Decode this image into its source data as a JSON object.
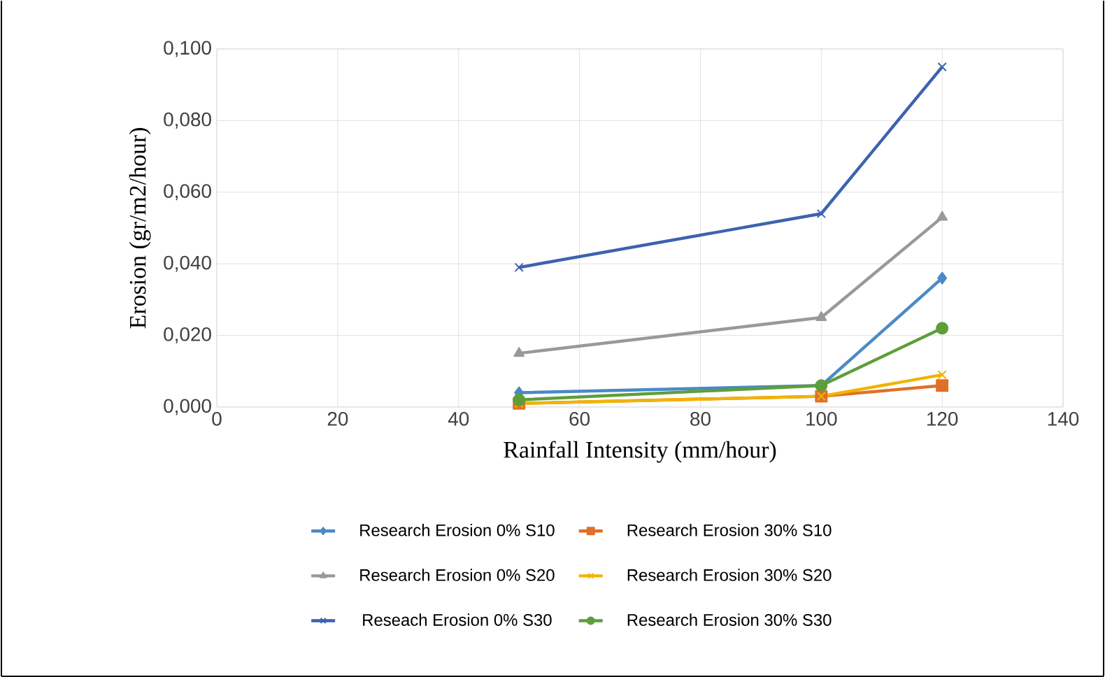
{
  "chart_data": {
    "type": "line",
    "xlabel": "Rainfall Intensity (mm/hour)",
    "ylabel": "Erosion (gr/m2/hour)",
    "x": [
      50,
      100,
      120
    ],
    "series": [
      {
        "name": "Research Erosion 0% S10",
        "color": "#4a8ac4",
        "marker": "diamond",
        "values": [
          0.004,
          0.006,
          0.036
        ]
      },
      {
        "name": "Research Erosion 30% S10",
        "color": "#e07028",
        "marker": "square",
        "values": [
          0.001,
          0.003,
          0.006
        ]
      },
      {
        "name": "Research Erosion 0% S20",
        "color": "#999999",
        "marker": "triangle",
        "values": [
          0.015,
          0.025,
          0.053
        ]
      },
      {
        "name": "Research Erosion 30% S20",
        "color": "#f0b400",
        "marker": "cross",
        "values": [
          0.001,
          0.003,
          0.009
        ]
      },
      {
        "name": "Reseach Erosion 0% S30",
        "color": "#3d62b0",
        "marker": "cross",
        "values": [
          0.039,
          0.054,
          0.095
        ]
      },
      {
        "name": "Research Erosion 30% S30",
        "color": "#5e9e3a",
        "marker": "circle",
        "values": [
          0.002,
          0.006,
          0.022
        ]
      }
    ],
    "xlim": [
      0,
      140
    ],
    "xticks": [
      0,
      20,
      40,
      60,
      80,
      100,
      120,
      140
    ],
    "ylim": [
      0,
      0.1
    ],
    "yticks": [
      {
        "value": 0,
        "label": "0,000"
      },
      {
        "value": 0.02,
        "label": "0,020"
      },
      {
        "value": 0.04,
        "label": "0,040"
      },
      {
        "value": 0.06,
        "label": "0,060"
      },
      {
        "value": 0.08,
        "label": "0,080"
      },
      {
        "value": 0.1,
        "label": "0,100"
      }
    ],
    "grid": true,
    "legend": "bottom",
    "line_style": "solid"
  }
}
